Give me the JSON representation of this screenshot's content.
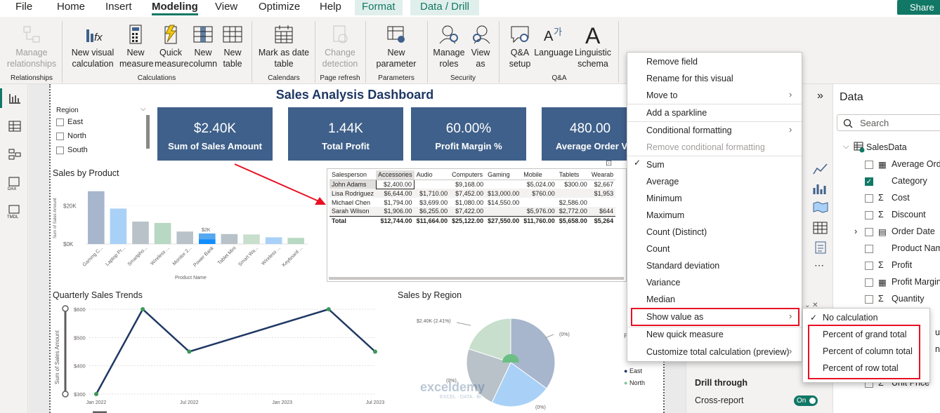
{
  "menu": {
    "tabs": [
      "File",
      "Home",
      "Insert",
      "Modeling",
      "View",
      "Optimize",
      "Help"
    ],
    "context_tabs": [
      "Format",
      "Data / Drill"
    ],
    "share_label": "Share"
  },
  "ribbon": {
    "manage_relationships": "Manage\nrelationships",
    "new_visual_calc": "New visual\ncalculation",
    "new_measure": "New\nmeasure",
    "quick_measure": "Quick\nmeasure",
    "new_column": "New\ncolumn",
    "new_table": "New\ntable",
    "mark_as_date_table": "Mark as date\ntable",
    "change_detection": "Change\ndetection",
    "new_parameter": "New\nparameter",
    "manage_roles": "Manage\nroles",
    "view_as": "View\nas",
    "qa_setup": "Q&A\nsetup",
    "language": "Language",
    "linguistic_schema": "Linguistic\nschema",
    "groups": {
      "relationships": "Relationships",
      "calculations": "Calculations",
      "calendars": "Calendars",
      "page_refresh": "Page refresh",
      "parameters": "Parameters",
      "security": "Security",
      "qa": "Q&A"
    }
  },
  "dashboard": {
    "title": "Sales Analysis Dashboard",
    "slicer": {
      "title": "Region",
      "items": [
        "East",
        "North",
        "South"
      ]
    },
    "kpis": [
      {
        "value": "$2.40K",
        "label": "Sum of Sales Amount"
      },
      {
        "value": "1.44K",
        "label": "Total Profit"
      },
      {
        "value": "60.00%",
        "label": "Profit Margin %"
      },
      {
        "value": "480.00",
        "label": "Average Order Value"
      }
    ],
    "matrix": {
      "headers": [
        "Salesperson",
        "Accessories",
        "Audio",
        "Computers",
        "Gaming",
        "Mobile",
        "Tablets",
        "Wearab"
      ],
      "rows": [
        [
          "John Adams",
          "$2,400.00",
          "",
          "$9,168.00",
          "",
          "$5,024.00",
          "$300.00",
          "$2,667"
        ],
        [
          "Lisa Rodriguez",
          "$6,644.00",
          "$1,710.00",
          "$7,452.00",
          "$13,000.00",
          "$760.00",
          "",
          "$1,953"
        ],
        [
          "Michael Chen",
          "$1,794.00",
          "$3,699.00",
          "$1,080.00",
          "$14,550.00",
          "",
          "$2,586.00",
          ""
        ],
        [
          "Sarah Wilson",
          "$1,906.00",
          "$6,255.00",
          "$7,422.00",
          "",
          "$5,976.00",
          "$2,772.00",
          "$644"
        ]
      ],
      "total": [
        "Total",
        "$12,744.00",
        "$11,664.00",
        "$25,122.00",
        "$27,550.00",
        "$11,760.00",
        "$5,658.00",
        "$5,264"
      ]
    },
    "legend_items": [
      "East",
      "North"
    ],
    "watermark": {
      "brand": "exceldemy",
      "tagline": "EXCEL · DATA · BI"
    }
  },
  "chart_data": [
    {
      "type": "bar",
      "title": "Sales by Product",
      "xlabel": "Product Name",
      "ylabel": "Sum of Sales Amount",
      "y_ticks": [
        "$0K",
        "$20K"
      ],
      "ylim": [
        0,
        30000
      ],
      "categories": [
        "Gaming C...",
        "Laptop Pr...",
        "Smartpho...",
        "Wireless ...",
        "Monitor 2...",
        "Power Bank",
        "Tablet Mini",
        "Smart Wa...",
        "Wireless ...",
        "Keyboard ..."
      ],
      "values": [
        27550,
        18500,
        11700,
        11000,
        6500,
        5500,
        5200,
        5000,
        3500,
        3200
      ],
      "highlight_values": [
        0,
        0,
        0,
        0,
        0,
        2400,
        0,
        0,
        0,
        0
      ],
      "data_label": "$2K",
      "colors": [
        "#a7b6cc",
        "#a9d1f7",
        "#b8c2c8",
        "#b7d8c2",
        "#b8c2c8",
        "#56a8f0",
        "#b8c2c8",
        "#c7dfcc",
        "#a9d1f7",
        "#b7d8c2"
      ]
    },
    {
      "type": "line",
      "title": "Quarterly Sales Trends",
      "ylabel": "Sum of Sales Amount",
      "x_ticks": [
        "Jan 2022",
        "Jul 2022",
        "Jan 2023",
        "Jul 2023"
      ],
      "y_ticks": [
        "$300",
        "$400",
        "$500",
        "$600"
      ],
      "ylim": [
        300,
        600
      ],
      "x": [
        "2022 Q1",
        "2022 Q2",
        "2022 Q3",
        "2022 Q4",
        "2023 Q1",
        "2023 Q2",
        "2023 Q3"
      ],
      "values": [
        300,
        600,
        450,
        null,
        null,
        600,
        450
      ],
      "color": "#1f3864"
    },
    {
      "type": "pie",
      "title": "Sales by Region",
      "labels": [
        "$2.40K (2.41%)",
        "(0%)",
        "(0%)",
        "(0%)"
      ],
      "slices": [
        {
          "value": 35,
          "color": "#a7b6cc"
        },
        {
          "value": 22,
          "color": "#a9d1f7"
        },
        {
          "value": 23,
          "color": "#b8c2c8"
        },
        {
          "value": 20,
          "color": "#c7dfcc"
        }
      ]
    }
  ],
  "context_menu": {
    "items": [
      "Remove field",
      "Rename for this visual",
      "Move to",
      "Add a sparkline",
      "Conditional formatting",
      "Remove conditional formatting",
      "Sum",
      "Average",
      "Minimum",
      "Maximum",
      "Count (Distinct)",
      "Count",
      "Standard deviation",
      "Variance",
      "Median",
      "Show value as",
      "New quick measure",
      "Customize total calculation (preview)"
    ],
    "submenu": [
      "No calculation",
      "Percent of grand total",
      "Percent of column total",
      "Percent of row total"
    ]
  },
  "viz_pane": {
    "drill_through": "Drill through",
    "cross_report": "Cross-report",
    "toggle": "On"
  },
  "data_pane": {
    "title": "Data",
    "search_placeholder": "Search",
    "table": "SalesData",
    "fields": [
      "Average Order Value",
      "Category",
      "Cost",
      "Discount",
      "Order Date",
      "Product Name",
      "Profit",
      "Profit Margin %",
      "Quantity",
      "Unit Price"
    ],
    "partial_fields": [
      "unt",
      "n"
    ]
  },
  "colors": {
    "accent": "#117865",
    "kpi": "#3f608a",
    "highlight": "#e81123",
    "arrow": "#e81123"
  }
}
